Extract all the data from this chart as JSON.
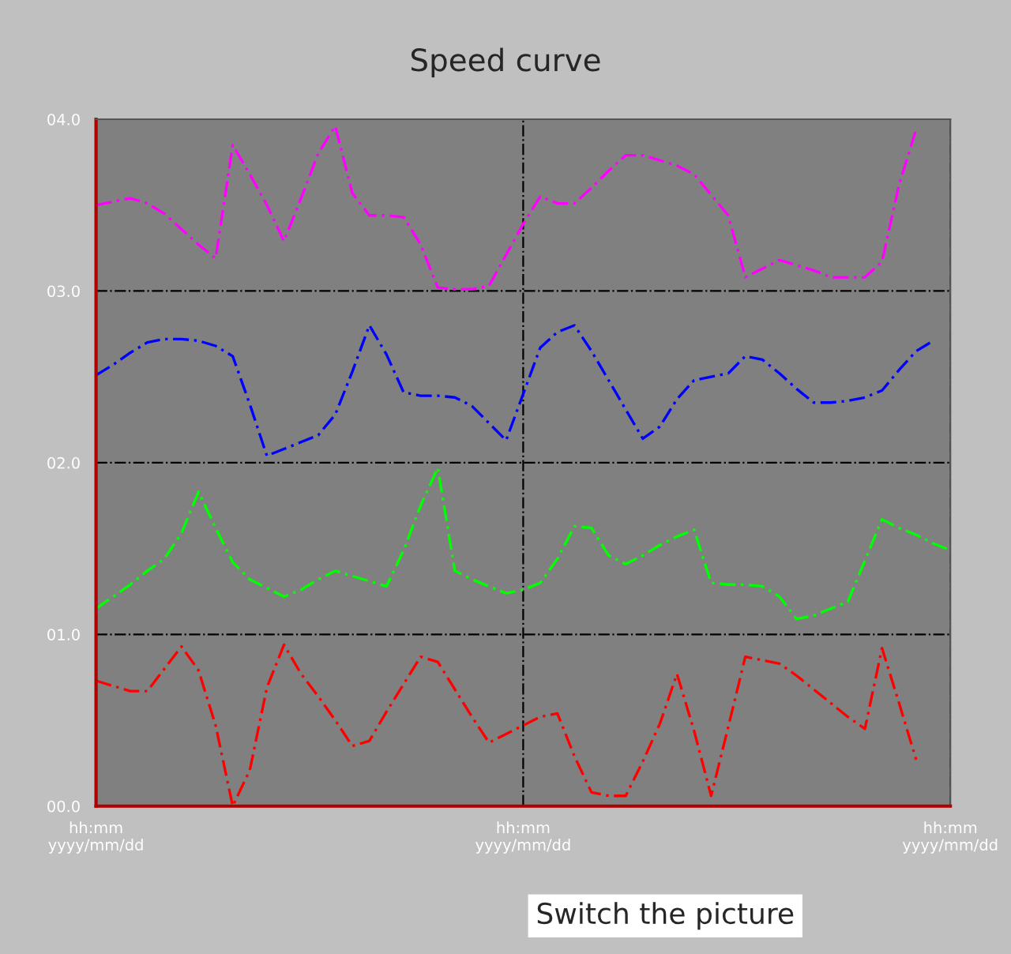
{
  "chart_data": {
    "type": "line",
    "title": "Speed curve",
    "categories": [
      "hh:mm\nyyyy/mm/dd",
      null,
      null,
      null,
      null,
      null,
      null,
      null,
      null,
      null,
      null,
      null,
      null,
      null,
      null,
      null,
      null,
      null,
      null,
      null,
      null,
      null,
      null,
      null,
      null,
      "hh:mm\nyyyy/mm/dd",
      null,
      null,
      null,
      null,
      null,
      null,
      null,
      null,
      null,
      null,
      null,
      null,
      null,
      null,
      null,
      null,
      null,
      null,
      null,
      null,
      null,
      null,
      null,
      null,
      "hh:mm\nyyyy/mm/dd"
    ],
    "ylim": [
      0,
      4
    ],
    "yticks": [
      {
        "value": 0,
        "label": "00.0"
      },
      {
        "value": 1,
        "label": "01.0"
      },
      {
        "value": 2,
        "label": "02.0"
      },
      {
        "value": 3,
        "label": "03.0"
      },
      {
        "value": 4,
        "label": "04.0"
      }
    ],
    "grid": true,
    "line_style": "dashed",
    "series": [
      {
        "color": "#ff00ff",
        "values": [
          3.5,
          3.52,
          3.54,
          3.51,
          3.45,
          3.36,
          3.27,
          3.19,
          3.85,
          3.68,
          3.5,
          3.29,
          3.54,
          3.8,
          3.96,
          3.57,
          3.44,
          3.44,
          3.43,
          3.27,
          3.02,
          3.01,
          3.01,
          3.03,
          3.21,
          3.39,
          3.55,
          3.51,
          3.51,
          3.6,
          3.7,
          3.79,
          3.79,
          3.76,
          3.73,
          3.68,
          3.56,
          3.44,
          3.08,
          3.13,
          3.18,
          3.15,
          3.12,
          3.08,
          3.08,
          3.08,
          3.17,
          3.62,
          3.94,
          null,
          null
        ]
      },
      {
        "color": "#0000ff",
        "values": [
          2.51,
          2.57,
          2.64,
          2.7,
          2.72,
          2.72,
          2.71,
          2.68,
          2.62,
          2.34,
          2.04,
          2.08,
          2.12,
          2.16,
          2.28,
          2.53,
          2.8,
          2.63,
          2.41,
          2.39,
          2.39,
          2.38,
          2.33,
          2.23,
          2.13,
          2.4,
          2.67,
          2.76,
          2.8,
          2.65,
          2.48,
          2.31,
          2.14,
          2.21,
          2.37,
          2.48,
          2.5,
          2.52,
          2.62,
          2.6,
          2.52,
          2.43,
          2.35,
          2.35,
          2.36,
          2.38,
          2.42,
          2.54,
          2.65,
          2.71,
          null
        ]
      },
      {
        "color": "#00ff00",
        "values": [
          1.15,
          1.22,
          1.29,
          1.37,
          1.44,
          1.59,
          1.83,
          1.62,
          1.42,
          1.32,
          1.27,
          1.22,
          1.26,
          1.32,
          1.37,
          1.34,
          1.31,
          1.28,
          1.49,
          1.75,
          1.97,
          1.37,
          1.32,
          1.28,
          1.24,
          1.26,
          1.3,
          1.44,
          1.63,
          1.62,
          1.46,
          1.41,
          1.46,
          1.52,
          1.57,
          1.61,
          1.3,
          1.29,
          1.29,
          1.28,
          1.22,
          1.09,
          1.11,
          1.15,
          1.19,
          1.43,
          1.67,
          1.62,
          1.58,
          1.53,
          1.49
        ]
      },
      {
        "color": "#ff0000",
        "values": [
          0.73,
          0.7,
          0.67,
          0.67,
          0.8,
          0.93,
          0.79,
          0.47,
          0.0,
          0.21,
          0.69,
          0.94,
          0.77,
          0.64,
          0.5,
          0.35,
          0.38,
          0.55,
          0.71,
          0.87,
          0.84,
          0.68,
          0.52,
          0.37,
          0.42,
          0.47,
          0.52,
          0.54,
          0.29,
          0.08,
          0.06,
          0.06,
          0.26,
          0.48,
          0.77,
          0.44,
          0.06,
          0.46,
          0.87,
          0.85,
          0.83,
          0.76,
          0.68,
          0.6,
          0.52,
          0.45,
          0.92,
          0.6,
          0.27,
          null,
          null
        ]
      }
    ],
    "annotations": [
      "Switch the picture"
    ]
  }
}
